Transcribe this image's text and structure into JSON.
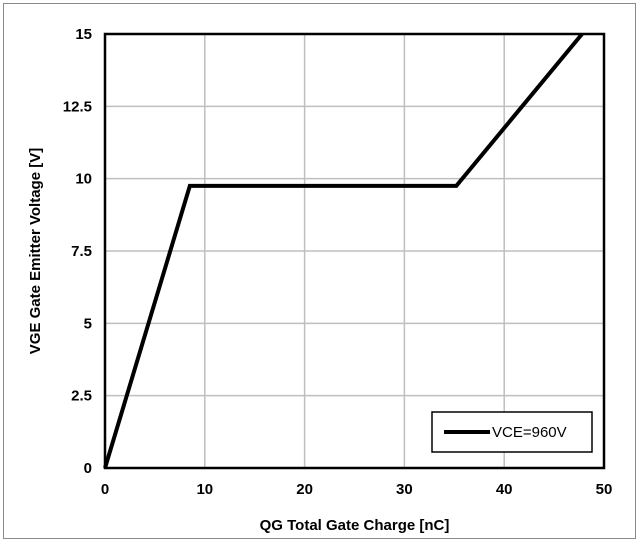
{
  "chart_data": {
    "type": "line",
    "title": "",
    "xlabel": "QG Total Gate Charge [nC]",
    "ylabel": "VGE Gate Emitter Voltage [V]",
    "xlim": [
      0,
      50
    ],
    "ylim": [
      0,
      15
    ],
    "x_ticks": [
      0,
      10,
      20,
      30,
      40,
      50
    ],
    "y_ticks": [
      0,
      2.5,
      5,
      7.5,
      10,
      12.5,
      15
    ],
    "x_tick_labels": [
      "0",
      "10",
      "20",
      "30",
      "40",
      "50"
    ],
    "y_tick_labels": [
      "0",
      "2.5",
      "5",
      "7.5",
      "10",
      "12.5",
      "15"
    ],
    "grid": true,
    "legend_position": "bottom-right",
    "series": [
      {
        "name": "VCE=960V",
        "color": "#000000",
        "x": [
          0,
          8.5,
          35.2,
          47.8
        ],
        "y": [
          0,
          9.75,
          9.75,
          15
        ]
      }
    ]
  }
}
